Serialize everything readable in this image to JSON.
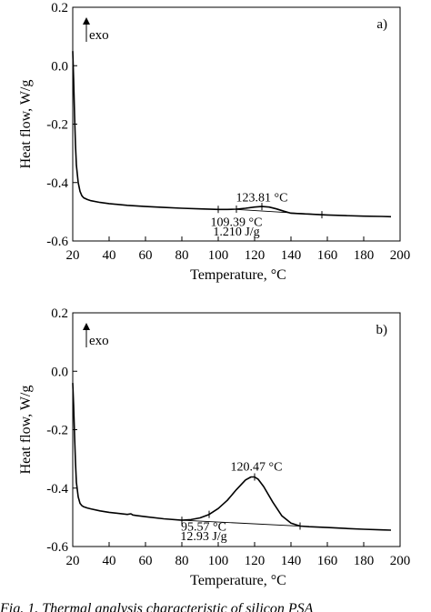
{
  "figure": {
    "caption": "Fig. 1. Thermal analysis characteristic of silicon PSA"
  },
  "chart_data": [
    {
      "type": "line",
      "panel_label": "a)",
      "xlabel": "Temperature, °C",
      "ylabel": "Heat flow, W/g",
      "xlim": [
        20,
        200
      ],
      "ylim": [
        -0.6,
        0.2
      ],
      "x_ticks": [
        "20",
        "40",
        "60",
        "80",
        "100",
        "120",
        "140",
        "160",
        "180",
        "200"
      ],
      "y_ticks": [
        "0.2",
        "0.0",
        "-0.2",
        "-0.4",
        "-0.6"
      ],
      "exo_label": "exo",
      "grid": false,
      "series": [
        {
          "x": [
            20,
            20.5,
            21,
            21.5,
            22,
            23,
            24,
            25,
            26,
            28,
            30,
            35,
            40,
            50,
            60,
            70,
            80,
            90,
            100,
            105,
            110,
            115,
            120,
            124,
            128,
            132,
            136,
            140,
            150,
            160,
            170,
            180,
            190,
            195
          ],
          "y": [
            0.05,
            -0.05,
            -0.17,
            -0.27,
            -0.34,
            -0.4,
            -0.43,
            -0.445,
            -0.452,
            -0.458,
            -0.462,
            -0.468,
            -0.472,
            -0.478,
            -0.482,
            -0.485,
            -0.488,
            -0.49,
            -0.492,
            -0.492,
            -0.491,
            -0.488,
            -0.484,
            -0.482,
            -0.484,
            -0.49,
            -0.498,
            -0.505,
            -0.508,
            -0.511,
            -0.513,
            -0.515,
            -0.516,
            -0.517
          ]
        }
      ],
      "baseline": {
        "x": [
          110,
          157
        ],
        "y": [
          -0.492,
          -0.51
        ]
      },
      "markers": [
        {
          "x": 100,
          "y": -0.492
        },
        {
          "x": 110,
          "y": -0.491
        },
        {
          "x": 124,
          "y": -0.482
        },
        {
          "x": 157,
          "y": -0.51
        }
      ],
      "annotations": [
        {
          "text": "123.81 °C",
          "x": 124,
          "y": -0.465,
          "anchor": "middle"
        },
        {
          "text": "109.39 °C",
          "x": 110,
          "y": -0.548,
          "anchor": "middle"
        },
        {
          "text": "1.210 J/g",
          "x": 110,
          "y": -0.582,
          "anchor": "middle"
        }
      ]
    },
    {
      "type": "line",
      "panel_label": "b)",
      "xlabel": "Temperature, °C",
      "ylabel": "Heat flow, W/g",
      "xlim": [
        20,
        200
      ],
      "ylim": [
        -0.6,
        0.2
      ],
      "x_ticks": [
        "20",
        "40",
        "60",
        "80",
        "100",
        "120",
        "140",
        "160",
        "180",
        "200"
      ],
      "y_ticks": [
        "0.2",
        "0.0",
        "-0.2",
        "-0.4",
        "-0.6"
      ],
      "exo_label": "exo",
      "grid": false,
      "series": [
        {
          "x": [
            20,
            20.5,
            21,
            21.5,
            22,
            23,
            24,
            25,
            26,
            28,
            30,
            35,
            40,
            50,
            52,
            53,
            55,
            60,
            70,
            80,
            85,
            90,
            95,
            100,
            105,
            110,
            115,
            118,
            120,
            122,
            125,
            130,
            135,
            140,
            145,
            150,
            160,
            170,
            180,
            190,
            195
          ],
          "y": [
            -0.04,
            -0.12,
            -0.22,
            -0.31,
            -0.38,
            -0.43,
            -0.452,
            -0.46,
            -0.464,
            -0.468,
            -0.471,
            -0.478,
            -0.483,
            -0.49,
            -0.488,
            -0.492,
            -0.494,
            -0.498,
            -0.505,
            -0.51,
            -0.508,
            -0.502,
            -0.49,
            -0.47,
            -0.442,
            -0.405,
            -0.372,
            -0.362,
            -0.362,
            -0.37,
            -0.395,
            -0.448,
            -0.495,
            -0.52,
            -0.53,
            -0.532,
            -0.535,
            -0.538,
            -0.541,
            -0.543,
            -0.544
          ]
        }
      ],
      "baseline": {
        "x": [
          80,
          145
        ],
        "y": [
          -0.51,
          -0.53
        ]
      },
      "markers": [
        {
          "x": 80,
          "y": -0.51
        },
        {
          "x": 95,
          "y": -0.49
        },
        {
          "x": 120,
          "y": -0.362
        },
        {
          "x": 145,
          "y": -0.53
        }
      ],
      "annotations": [
        {
          "text": "120.47 °C",
          "x": 121,
          "y": -0.34,
          "anchor": "middle"
        },
        {
          "text": "95.57 °C",
          "x": 92,
          "y": -0.545,
          "anchor": "middle"
        },
        {
          "text": "12.93 J/g",
          "x": 92,
          "y": -0.578,
          "anchor": "middle"
        }
      ]
    }
  ]
}
